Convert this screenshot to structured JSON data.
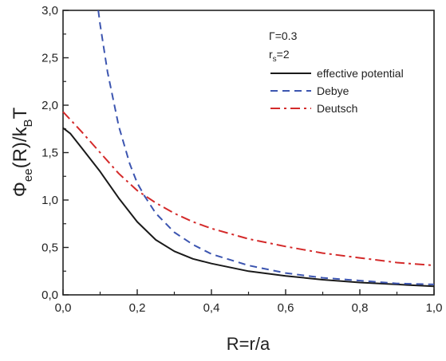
{
  "chart_data": {
    "type": "line",
    "xlabel": "R=r/a",
    "ylabel": {
      "symbol": "Φ",
      "subscript": "ee",
      "middle": "(R)/k",
      "subscript2": "B",
      "tail": "T"
    },
    "xlim": [
      0.0,
      1.0
    ],
    "ylim": [
      0.0,
      3.0
    ],
    "x_ticks": [
      "0,0",
      "0,2",
      "0,4",
      "0,6",
      "0,8",
      "1,0"
    ],
    "y_ticks": [
      "0,0",
      "0,5",
      "1,0",
      "1,5",
      "2,0",
      "2,5",
      "3,0"
    ],
    "grid": false,
    "legend_position": "top-right",
    "parameters": [
      {
        "text": "Γ=0.3"
      },
      {
        "text": "r",
        "sub": "s",
        "tail": "=2"
      }
    ],
    "series": [
      {
        "name": "effective potential",
        "color": "#1a1a1a",
        "style": "solid",
        "x": [
          0.0,
          0.02,
          0.05,
          0.1,
          0.15,
          0.2,
          0.25,
          0.3,
          0.35,
          0.4,
          0.5,
          0.6,
          0.7,
          0.8,
          0.9,
          1.0
        ],
        "y": [
          1.76,
          1.7,
          1.55,
          1.3,
          1.02,
          0.77,
          0.58,
          0.46,
          0.38,
          0.33,
          0.25,
          0.2,
          0.16,
          0.13,
          0.11,
          0.09
        ]
      },
      {
        "name": "Debye",
        "color": "#3c55b0",
        "style": "dashed",
        "x": [
          0.095,
          0.1,
          0.12,
          0.15,
          0.18,
          0.2,
          0.22,
          0.25,
          0.3,
          0.35,
          0.4,
          0.5,
          0.6,
          0.7,
          0.8,
          0.9,
          1.0
        ],
        "y": [
          3.0,
          2.85,
          2.35,
          1.78,
          1.38,
          1.18,
          1.04,
          0.86,
          0.66,
          0.53,
          0.43,
          0.31,
          0.23,
          0.18,
          0.15,
          0.12,
          0.11
        ]
      },
      {
        "name": "Deutsch",
        "color": "#d42a2a",
        "style": "dashdot",
        "x": [
          0.0,
          0.05,
          0.1,
          0.15,
          0.2,
          0.25,
          0.3,
          0.35,
          0.4,
          0.5,
          0.6,
          0.7,
          0.8,
          0.9,
          1.0
        ],
        "y": [
          1.93,
          1.72,
          1.5,
          1.28,
          1.1,
          0.97,
          0.86,
          0.77,
          0.7,
          0.59,
          0.51,
          0.44,
          0.39,
          0.34,
          0.31
        ]
      }
    ]
  }
}
